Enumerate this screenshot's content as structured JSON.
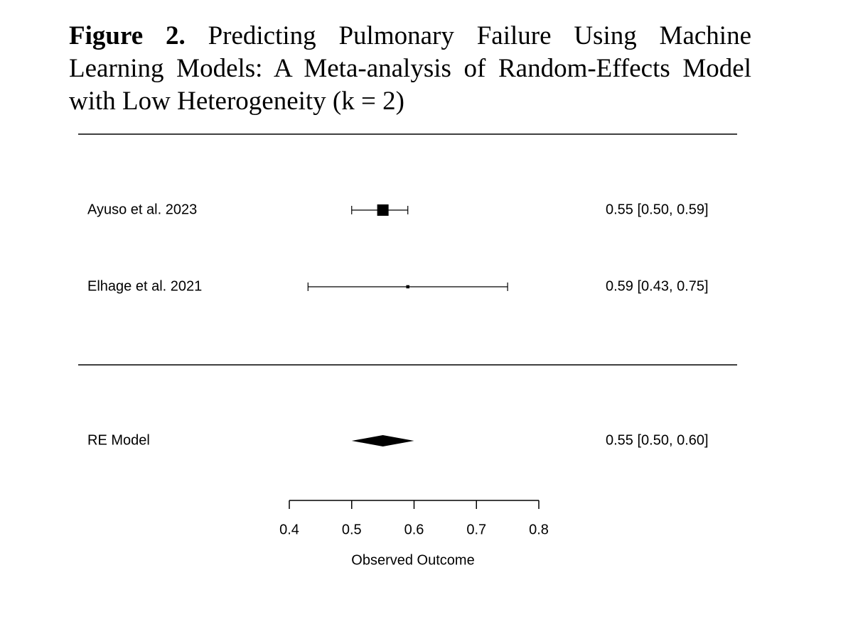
{
  "chart_data": {
    "type": "forest",
    "title_label": "Figure 2.",
    "title": "Predicting Pulmonary Failure Using Machine Learning Models: A Meta-analysis of Random-Effects Model with Low Heterogeneity (k = 2)",
    "categories": [
      "Ayuso et al. 2023",
      "Elhage et al. 2021"
    ],
    "values": [
      0.55,
      0.59
    ],
    "lower": [
      0.5,
      0.43
    ],
    "upper": [
      0.59,
      0.75
    ],
    "value_labels": [
      "0.55 [0.50, 0.59]",
      "0.59 [0.43, 0.75]"
    ],
    "summary": {
      "name": "RE Model",
      "value": 0.55,
      "lower": 0.5,
      "upper": 0.6,
      "value_label": "0.55 [0.50, 0.60]"
    },
    "xlim": [
      0.4,
      0.8
    ],
    "xticks": [
      0.4,
      0.5,
      0.6,
      0.7,
      0.8
    ],
    "xlabel": "Observed Outcome",
    "color": "#000000"
  }
}
